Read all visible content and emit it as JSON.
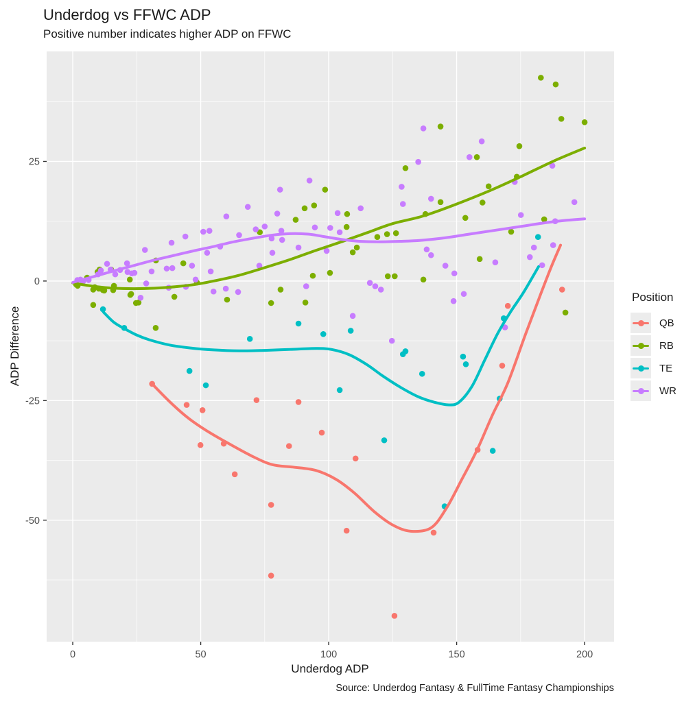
{
  "chart_data": {
    "type": "scatter",
    "title": "Underdog vs FFWC ADP",
    "subtitle": "Positive number indicates higher ADP on FFWC",
    "xlabel": "Underdog ADP",
    "ylabel": "ADP Difference",
    "caption": "Source: Underdog Fantasy & FullTime Fantasy Championships",
    "xlim": [
      -10.2,
      211.5
    ],
    "ylim": [
      -75.4,
      48
    ],
    "x_ticks": [
      0,
      50,
      100,
      150,
      200
    ],
    "y_ticks": [
      25,
      0,
      -25,
      -50
    ],
    "x_minor": [
      25,
      75,
      125,
      175
    ],
    "y_minor": [
      37.5,
      12.5,
      -12.5,
      -37.5,
      -62.5
    ],
    "grid": true,
    "panel_bg": "#EBEBEB",
    "grid_color": "#FFFFFF",
    "tick_label_color": "#4D4D4D",
    "legend": {
      "title": "Position",
      "position": "right"
    },
    "series": [
      {
        "name": "QB",
        "color": "#F8766D",
        "points": [
          [
            31,
            -21.5
          ],
          [
            44.5,
            -25.9
          ],
          [
            49.9,
            -34.3
          ],
          [
            50.7,
            -27
          ],
          [
            59,
            -34
          ],
          [
            63.3,
            -40.4
          ],
          [
            71.8,
            -24.9
          ],
          [
            77.5,
            -46.8
          ],
          [
            77.5,
            -61.6
          ],
          [
            84.5,
            -34.5
          ],
          [
            88.2,
            -25.3
          ],
          [
            97.3,
            -31.7
          ],
          [
            107,
            -52.2
          ],
          [
            110.5,
            -37.1
          ],
          [
            125.7,
            -70
          ],
          [
            141,
            -52.6
          ],
          [
            158.2,
            -35.3
          ],
          [
            167.8,
            -17.7
          ],
          [
            170,
            -5.2
          ],
          [
            191.2,
            -1.8
          ]
        ],
        "smooth": [
          [
            31,
            -21.5
          ],
          [
            38,
            -25.3
          ],
          [
            45,
            -28.6
          ],
          [
            52,
            -31.2
          ],
          [
            60,
            -33.7
          ],
          [
            70,
            -36.6
          ],
          [
            78,
            -38.4
          ],
          [
            86,
            -38.9
          ],
          [
            95,
            -39.6
          ],
          [
            103,
            -41.5
          ],
          [
            110,
            -44.3
          ],
          [
            118,
            -48.3
          ],
          [
            125,
            -51
          ],
          [
            132,
            -52.3
          ],
          [
            140,
            -51.6
          ],
          [
            146,
            -47.5
          ],
          [
            152,
            -41.5
          ],
          [
            158,
            -35.3
          ],
          [
            164,
            -28
          ],
          [
            170,
            -21.3
          ],
          [
            177,
            -11
          ],
          [
            183,
            -2.5
          ],
          [
            187,
            3
          ],
          [
            190.6,
            7.5
          ]
        ]
      },
      {
        "name": "RB",
        "color": "#7CAE00",
        "points": [
          [
            1.3,
            -0.7
          ],
          [
            1.9,
            -1
          ],
          [
            5.6,
            0.7
          ],
          [
            8,
            -1.8
          ],
          [
            8,
            -5
          ],
          [
            8.6,
            -1.3
          ],
          [
            9.7,
            1.9
          ],
          [
            10.2,
            -1.6
          ],
          [
            10.5,
            2.4
          ],
          [
            11.8,
            -1.9
          ],
          [
            12.3,
            -2
          ],
          [
            15,
            2.4
          ],
          [
            15.8,
            -1.9
          ],
          [
            16.1,
            -1
          ],
          [
            22.3,
            0.3
          ],
          [
            22.5,
            -2.9
          ],
          [
            22.8,
            -2.7
          ],
          [
            24.7,
            -4.6
          ],
          [
            25.7,
            -4.5
          ],
          [
            32.4,
            -9.8
          ],
          [
            32.5,
            4.3
          ],
          [
            39.7,
            -3.3
          ],
          [
            43.2,
            3.7
          ],
          [
            48.5,
            -0.3
          ],
          [
            60.3,
            -3.9
          ],
          [
            73.1,
            10.2
          ],
          [
            77.5,
            -4.6
          ],
          [
            81.2,
            -1.8
          ],
          [
            87.1,
            12.8
          ],
          [
            90.6,
            15.2
          ],
          [
            90.9,
            -4.5
          ],
          [
            93.8,
            1.1
          ],
          [
            94.3,
            15.8
          ],
          [
            98.6,
            19.1
          ],
          [
            100.5,
            1.7
          ],
          [
            107,
            11.3
          ],
          [
            107.2,
            14
          ],
          [
            109.4,
            6
          ],
          [
            111,
            7
          ],
          [
            119,
            9.2
          ],
          [
            122.8,
            9.8
          ],
          [
            123.1,
            1
          ],
          [
            125.8,
            1
          ],
          [
            126.3,
            10
          ],
          [
            130,
            23.6
          ],
          [
            137,
            0.3
          ],
          [
            137.8,
            14
          ],
          [
            143.7,
            16.5
          ],
          [
            143.7,
            32.3
          ],
          [
            153.4,
            13.2
          ],
          [
            157.9,
            25.9
          ],
          [
            159,
            4.6
          ],
          [
            160.1,
            16.4
          ],
          [
            162.5,
            19.8
          ],
          [
            171.3,
            10.3
          ],
          [
            173.5,
            21.8
          ],
          [
            174.5,
            28.2
          ],
          [
            182.9,
            42.5
          ],
          [
            184.2,
            12.9
          ],
          [
            188.7,
            41.1
          ],
          [
            190.9,
            33.9
          ],
          [
            192.5,
            -6.6
          ],
          [
            200,
            33.2
          ]
        ],
        "smooth": [
          [
            0,
            -0.4
          ],
          [
            8,
            -1.1
          ],
          [
            16,
            -1.5
          ],
          [
            24,
            -1.6
          ],
          [
            32,
            -1.5
          ],
          [
            40,
            -1.2
          ],
          [
            48,
            -0.7
          ],
          [
            56,
            0.1
          ],
          [
            65,
            1.2
          ],
          [
            75,
            2.8
          ],
          [
            85,
            4.5
          ],
          [
            95,
            6.4
          ],
          [
            105,
            8.2
          ],
          [
            115,
            10.1
          ],
          [
            125,
            12
          ],
          [
            137,
            13.6
          ],
          [
            150,
            16.1
          ],
          [
            163,
            18.9
          ],
          [
            175,
            21.8
          ],
          [
            188,
            25.1
          ],
          [
            200,
            27.8
          ]
        ]
      },
      {
        "name": "TE",
        "color": "#00BFC4",
        "points": [
          [
            11.8,
            -5.9
          ],
          [
            20.1,
            -9.8
          ],
          [
            45.6,
            -18.8
          ],
          [
            52,
            -21.8
          ],
          [
            69.2,
            -12.1
          ],
          [
            88.2,
            -8.9
          ],
          [
            97.9,
            -11.1
          ],
          [
            104.3,
            -22.8
          ],
          [
            108.6,
            -10.4
          ],
          [
            121.7,
            -33.3
          ],
          [
            129,
            -15.3
          ],
          [
            130,
            -14.7
          ],
          [
            136.5,
            -19.4
          ],
          [
            145.3,
            -47.1
          ],
          [
            152.5,
            -15.8
          ],
          [
            153.6,
            -17.4
          ],
          [
            164.1,
            -35.5
          ],
          [
            166.8,
            -24.6
          ],
          [
            168.4,
            -7.8
          ],
          [
            181.8,
            9.2
          ]
        ],
        "smooth": [
          [
            12,
            -6.5
          ],
          [
            16,
            -8.6
          ],
          [
            20,
            -9.9
          ],
          [
            25,
            -11.3
          ],
          [
            30,
            -12.3
          ],
          [
            38,
            -13.4
          ],
          [
            46,
            -14
          ],
          [
            55,
            -14.4
          ],
          [
            65,
            -14.6
          ],
          [
            75,
            -14.5
          ],
          [
            85,
            -14.3
          ],
          [
            95,
            -14.1
          ],
          [
            101,
            -14.3
          ],
          [
            108,
            -15.4
          ],
          [
            115,
            -17.5
          ],
          [
            121,
            -19.8
          ],
          [
            128,
            -22.2
          ],
          [
            135,
            -24.2
          ],
          [
            141,
            -25.3
          ],
          [
            147,
            -25.9
          ],
          [
            151,
            -25.3
          ],
          [
            156,
            -22
          ],
          [
            161,
            -16.5
          ],
          [
            166,
            -11
          ],
          [
            171,
            -6.5
          ],
          [
            176,
            -2.5
          ],
          [
            182,
            3
          ]
        ]
      },
      {
        "name": "WR",
        "color": "#C77CFF",
        "points": [
          [
            1.8,
            0.2
          ],
          [
            3,
            0.3
          ],
          [
            4,
            -0.1
          ],
          [
            6.2,
            0.2
          ],
          [
            9.9,
            1.4
          ],
          [
            11,
            2.2
          ],
          [
            13.4,
            3.6
          ],
          [
            14.8,
            2.4
          ],
          [
            16.6,
            1.4
          ],
          [
            18.5,
            2.3
          ],
          [
            21.2,
            3.7
          ],
          [
            21.4,
            1.9
          ],
          [
            23.1,
            1.6
          ],
          [
            24.1,
            1.7
          ],
          [
            26.5,
            -3.5
          ],
          [
            28.2,
            6.5
          ],
          [
            28.7,
            -0.5
          ],
          [
            30.8,
            2
          ],
          [
            36.7,
            2.6
          ],
          [
            37.5,
            -1.4
          ],
          [
            38.6,
            8
          ],
          [
            38.9,
            2.7
          ],
          [
            44,
            9.3
          ],
          [
            44.2,
            -1.2
          ],
          [
            46.6,
            3.2
          ],
          [
            48,
            0.3
          ],
          [
            51,
            10.3
          ],
          [
            52.5,
            5.9
          ],
          [
            53.4,
            10.5
          ],
          [
            53.9,
            2
          ],
          [
            55,
            -2.2
          ],
          [
            57.6,
            7.2
          ],
          [
            59.8,
            -1.6
          ],
          [
            60,
            13.5
          ],
          [
            64.6,
            -2.3
          ],
          [
            65,
            9.6
          ],
          [
            68.4,
            15.5
          ],
          [
            71.5,
            10.8
          ],
          [
            72.9,
            3.2
          ],
          [
            75,
            11.4
          ],
          [
            77.7,
            8.9
          ],
          [
            78,
            5.9
          ],
          [
            79.9,
            14.1
          ],
          [
            81,
            19.1
          ],
          [
            81.5,
            10.5
          ],
          [
            81.8,
            8.6
          ],
          [
            88.2,
            7
          ],
          [
            91.2,
            -1.1
          ],
          [
            92.5,
            21
          ],
          [
            94.6,
            11.2
          ],
          [
            99.2,
            6.3
          ],
          [
            100.6,
            11.1
          ],
          [
            103.5,
            14.2
          ],
          [
            104.3,
            10.2
          ],
          [
            109.4,
            -7.3
          ],
          [
            112.5,
            15.2
          ],
          [
            116.1,
            -0.4
          ],
          [
            118.2,
            -1.1
          ],
          [
            120.4,
            -1.8
          ],
          [
            124.7,
            -12.5
          ],
          [
            128.5,
            19.7
          ],
          [
            129,
            16.1
          ],
          [
            135,
            24.9
          ],
          [
            137,
            31.9
          ],
          [
            138.3,
            6.6
          ],
          [
            140,
            5.4
          ],
          [
            140,
            17.2
          ],
          [
            145.6,
            3.2
          ],
          [
            148.8,
            -4.2
          ],
          [
            149.1,
            1.6
          ],
          [
            152.8,
            -2.7
          ],
          [
            155,
            25.9
          ],
          [
            159.8,
            29.2
          ],
          [
            165.1,
            3.9
          ],
          [
            168.9,
            -9.7
          ],
          [
            172.7,
            20.7
          ],
          [
            175.1,
            13.8
          ],
          [
            178.6,
            5
          ],
          [
            180.2,
            7
          ],
          [
            183.4,
            3.3
          ],
          [
            187.4,
            24.1
          ],
          [
            187.7,
            7.5
          ],
          [
            188.5,
            12.5
          ],
          [
            196,
            16.5
          ]
        ],
        "smooth": [
          [
            0,
            -0.3
          ],
          [
            6,
            0.6
          ],
          [
            12,
            1.5
          ],
          [
            18,
            2.4
          ],
          [
            25,
            3.4
          ],
          [
            32,
            4.4
          ],
          [
            40,
            5.4
          ],
          [
            48,
            6.4
          ],
          [
            55,
            7.2
          ],
          [
            62,
            8.1
          ],
          [
            70,
            8.9
          ],
          [
            78,
            9.6
          ],
          [
            85,
            9.9
          ],
          [
            92,
            9.8
          ],
          [
            98,
            9.3
          ],
          [
            105,
            8.7
          ],
          [
            112,
            8.3
          ],
          [
            120,
            8.2
          ],
          [
            128,
            8.3
          ],
          [
            136,
            8.5
          ],
          [
            145,
            9
          ],
          [
            155,
            9.8
          ],
          [
            165,
            10.6
          ],
          [
            175,
            11.4
          ],
          [
            185,
            12.2
          ],
          [
            193,
            12.7
          ],
          [
            200,
            13
          ]
        ]
      }
    ]
  }
}
